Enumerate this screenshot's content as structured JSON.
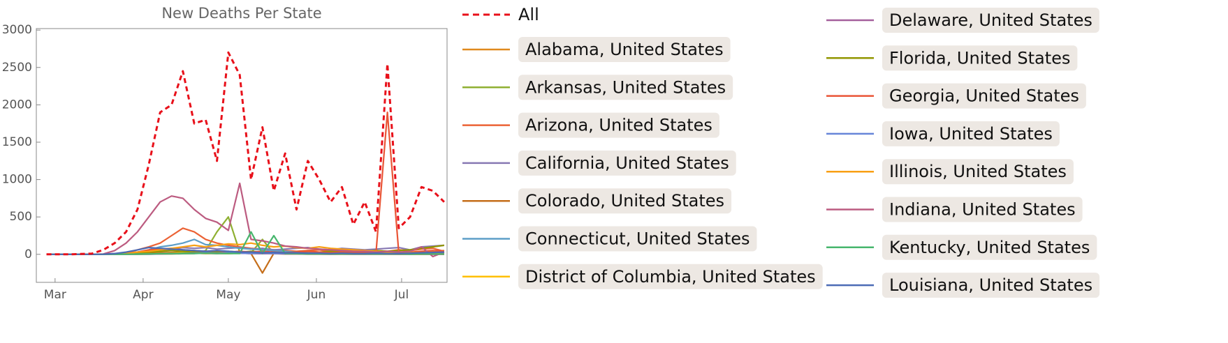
{
  "chart_data": {
    "type": "line",
    "title": "New Deaths Per State",
    "x": [
      58,
      62,
      66,
      70,
      74,
      78,
      82,
      86,
      90,
      94,
      98,
      102,
      106,
      110,
      114,
      118,
      122,
      126,
      130,
      134,
      138,
      142,
      146,
      150,
      154,
      158,
      162,
      166,
      170,
      174,
      178,
      182,
      186,
      190,
      194,
      198
    ],
    "xlim": [
      54.4,
      199
    ],
    "ylim": [
      -375,
      3020
    ],
    "xticks": [
      {
        "value": 61,
        "label": "Mar"
      },
      {
        "value": 92,
        "label": "Apr"
      },
      {
        "value": 122,
        "label": "May"
      },
      {
        "value": 153,
        "label": "Jun"
      },
      {
        "value": 183,
        "label": "Jul"
      }
    ],
    "yticks": [
      0,
      500,
      1000,
      1500,
      2000,
      2500,
      3000
    ],
    "series": [
      {
        "name": "All",
        "color": "#e8101a",
        "dashed": true,
        "values": [
          0,
          0,
          0,
          5,
          10,
          60,
          150,
          300,
          600,
          1200,
          1900,
          2000,
          2450,
          1750,
          1800,
          1250,
          2700,
          2400,
          1000,
          1700,
          850,
          1350,
          600,
          1250,
          1000,
          700,
          900,
          400,
          700,
          300,
          2550,
          350,
          500,
          900,
          850,
          700
        ]
      },
      {
        "name": "Alabama, United States",
        "color": "#e08a1e",
        "values": [
          0,
          0,
          0,
          0,
          0,
          0,
          1,
          3,
          5,
          8,
          10,
          15,
          20,
          15,
          10,
          12,
          10,
          15,
          12,
          10,
          15,
          20,
          15,
          10,
          15,
          20,
          12,
          15,
          20,
          15,
          20,
          25,
          30,
          20,
          40,
          50
        ]
      },
      {
        "name": "Arkansas, United States",
        "color": "#8fb032",
        "values": [
          0,
          0,
          0,
          0,
          0,
          0,
          0,
          1,
          2,
          3,
          5,
          5,
          8,
          10,
          50,
          300,
          500,
          30,
          20,
          200,
          10,
          20,
          10,
          5,
          10,
          15,
          10,
          8,
          10,
          12,
          10,
          15,
          10,
          12,
          20,
          15
        ]
      },
      {
        "name": "Arizona, United States",
        "color": "#eb6235",
        "values": [
          0,
          0,
          0,
          0,
          0,
          1,
          5,
          20,
          60,
          100,
          150,
          250,
          350,
          300,
          200,
          150,
          120,
          100,
          80,
          70,
          60,
          50,
          40,
          50,
          60,
          40,
          50,
          60,
          40,
          50,
          40,
          60,
          50,
          70,
          80,
          40
        ]
      },
      {
        "name": "California, United States",
        "color": "#8778b3",
        "values": [
          0,
          0,
          0,
          0,
          1,
          3,
          10,
          20,
          30,
          40,
          60,
          70,
          90,
          80,
          90,
          70,
          80,
          90,
          70,
          80,
          60,
          70,
          80,
          90,
          70,
          60,
          80,
          70,
          60,
          70,
          80,
          90,
          60,
          100,
          110,
          120
        ]
      },
      {
        "name": "Colorado, United States",
        "color": "#c56e1a",
        "values": [
          0,
          0,
          0,
          0,
          0,
          1,
          3,
          5,
          10,
          15,
          20,
          25,
          30,
          25,
          20,
          25,
          20,
          15,
          10,
          -250,
          15,
          10,
          10,
          8,
          10,
          8,
          5,
          5,
          5,
          5,
          5,
          5,
          5,
          5,
          5,
          5
        ]
      },
      {
        "name": "Connecticut, United States",
        "color": "#5d9ec7",
        "values": [
          0,
          0,
          0,
          0,
          0,
          1,
          3,
          10,
          30,
          60,
          100,
          120,
          150,
          200,
          130,
          120,
          100,
          80,
          70,
          60,
          50,
          40,
          30,
          20,
          15,
          10,
          10,
          8,
          5,
          5,
          5,
          3,
          3,
          3,
          2,
          2
        ]
      },
      {
        "name": "District of Columbia, United States",
        "color": "#ffbf00",
        "values": [
          0,
          0,
          0,
          0,
          0,
          0,
          0,
          1,
          2,
          5,
          10,
          15,
          20,
          15,
          10,
          15,
          10,
          15,
          12,
          10,
          8,
          5,
          5,
          3,
          3,
          2,
          2,
          1,
          1,
          1,
          1,
          0,
          1,
          0,
          1,
          0
        ]
      },
      {
        "name": "Delaware, United States",
        "color": "#a5609d",
        "values": [
          0,
          0,
          0,
          0,
          0,
          0,
          0,
          1,
          1,
          2,
          5,
          8,
          10,
          12,
          15,
          10,
          20,
          15,
          10,
          8,
          10,
          5,
          5,
          3,
          3,
          2,
          3,
          2,
          2,
          1,
          2,
          1,
          1,
          1,
          1,
          1
        ]
      },
      {
        "name": "Florida, United States",
        "color": "#929600",
        "values": [
          0,
          0,
          0,
          0,
          1,
          2,
          5,
          10,
          20,
          30,
          40,
          50,
          40,
          30,
          40,
          30,
          40,
          30,
          40,
          30,
          30,
          20,
          30,
          40,
          30,
          40,
          30,
          40,
          40,
          50,
          40,
          50,
          60,
          80,
          100,
          120
        ]
      },
      {
        "name": "Georgia, United States",
        "color": "#e95536",
        "values": [
          0,
          0,
          0,
          0,
          0,
          1,
          5,
          15,
          30,
          60,
          70,
          80,
          60,
          50,
          40,
          50,
          30,
          40,
          30,
          40,
          30,
          20,
          30,
          40,
          30,
          20,
          30,
          20,
          30,
          20,
          1900,
          20,
          30,
          40,
          50,
          40
        ]
      },
      {
        "name": "Iowa, United States",
        "color": "#6685d9",
        "values": [
          0,
          0,
          0,
          0,
          0,
          0,
          1,
          2,
          3,
          5,
          8,
          10,
          12,
          15,
          20,
          15,
          20,
          15,
          10,
          15,
          10,
          12,
          10,
          8,
          10,
          5,
          8,
          5,
          5,
          5,
          5,
          5,
          3,
          5,
          5,
          5
        ]
      },
      {
        "name": "Illinois, United States",
        "color": "#f89f13",
        "values": [
          0,
          0,
          0,
          0,
          0,
          1,
          5,
          10,
          30,
          40,
          60,
          80,
          100,
          120,
          100,
          120,
          140,
          130,
          150,
          120,
          100,
          110,
          90,
          80,
          100,
          80,
          70,
          60,
          50,
          40,
          30,
          30,
          20,
          20,
          25,
          20
        ]
      },
      {
        "name": "Indiana, United States",
        "color": "#bc5b80",
        "values": [
          0,
          0,
          0,
          0,
          0,
          5,
          50,
          150,
          300,
          500,
          700,
          780,
          750,
          600,
          480,
          430,
          320,
          950,
          200,
          180,
          150,
          110,
          100,
          80,
          70,
          60,
          50,
          40,
          40,
          30,
          40,
          30,
          40,
          100,
          -30,
          30
        ]
      },
      {
        "name": "Kentucky, United States",
        "color": "#47b66d",
        "values": [
          0,
          0,
          0,
          0,
          0,
          0,
          1,
          2,
          3,
          5,
          8,
          10,
          12,
          10,
          15,
          10,
          12,
          10,
          300,
          10,
          250,
          10,
          8,
          5,
          5,
          5,
          5,
          5,
          5,
          5,
          5,
          5,
          3,
          5,
          5,
          5
        ]
      },
      {
        "name": "Louisiana, United States",
        "color": "#4b6bb5",
        "values": [
          0,
          0,
          0,
          0,
          0,
          1,
          10,
          30,
          60,
          90,
          80,
          70,
          60,
          50,
          40,
          50,
          40,
          30,
          30,
          20,
          25,
          20,
          20,
          15,
          15,
          10,
          15,
          10,
          10,
          15,
          10,
          10,
          15,
          20,
          25,
          30
        ]
      }
    ]
  }
}
